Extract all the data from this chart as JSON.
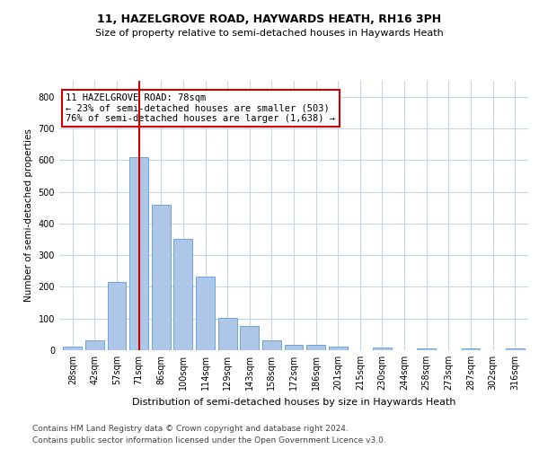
{
  "title": "11, HAZELGROVE ROAD, HAYWARDS HEATH, RH16 3PH",
  "subtitle": "Size of property relative to semi-detached houses in Haywards Heath",
  "xlabel": "Distribution of semi-detached houses by size in Haywards Heath",
  "ylabel": "Number of semi-detached properties",
  "footnote1": "Contains HM Land Registry data © Crown copyright and database right 2024.",
  "footnote2": "Contains public sector information licensed under the Open Government Licence v3.0.",
  "categories": [
    "28sqm",
    "42sqm",
    "57sqm",
    "71sqm",
    "86sqm",
    "100sqm",
    "114sqm",
    "129sqm",
    "143sqm",
    "158sqm",
    "172sqm",
    "186sqm",
    "201sqm",
    "215sqm",
    "230sqm",
    "244sqm",
    "258sqm",
    "273sqm",
    "287sqm",
    "302sqm",
    "316sqm"
  ],
  "values": [
    12,
    30,
    215,
    610,
    460,
    350,
    232,
    102,
    77,
    30,
    17,
    17,
    10,
    0,
    8,
    0,
    5,
    0,
    5,
    0,
    5
  ],
  "bar_color": "#aec6e8",
  "bar_edge_color": "#5b9bd5",
  "marker_bin_index": 3,
  "marker_color": "#cc0000",
  "annotation_text1": "11 HAZELGROVE ROAD: 78sqm",
  "annotation_text2": "← 23% of semi-detached houses are smaller (503)",
  "annotation_text3": "76% of semi-detached houses are larger (1,638) →",
  "annotation_box_color": "#ffffff",
  "annotation_box_edge_color": "#cc0000",
  "ylim": [
    0,
    850
  ],
  "yticks": [
    0,
    100,
    200,
    300,
    400,
    500,
    600,
    700,
    800
  ],
  "title_fontsize": 9,
  "subtitle_fontsize": 8,
  "axis_fontsize": 7.5,
  "tick_fontsize": 7,
  "annotation_fontsize": 7.5,
  "xlabel_fontsize": 8,
  "footnote_fontsize": 6.5,
  "bg_color": "#ffffff",
  "grid_color": "#c8d4e8"
}
